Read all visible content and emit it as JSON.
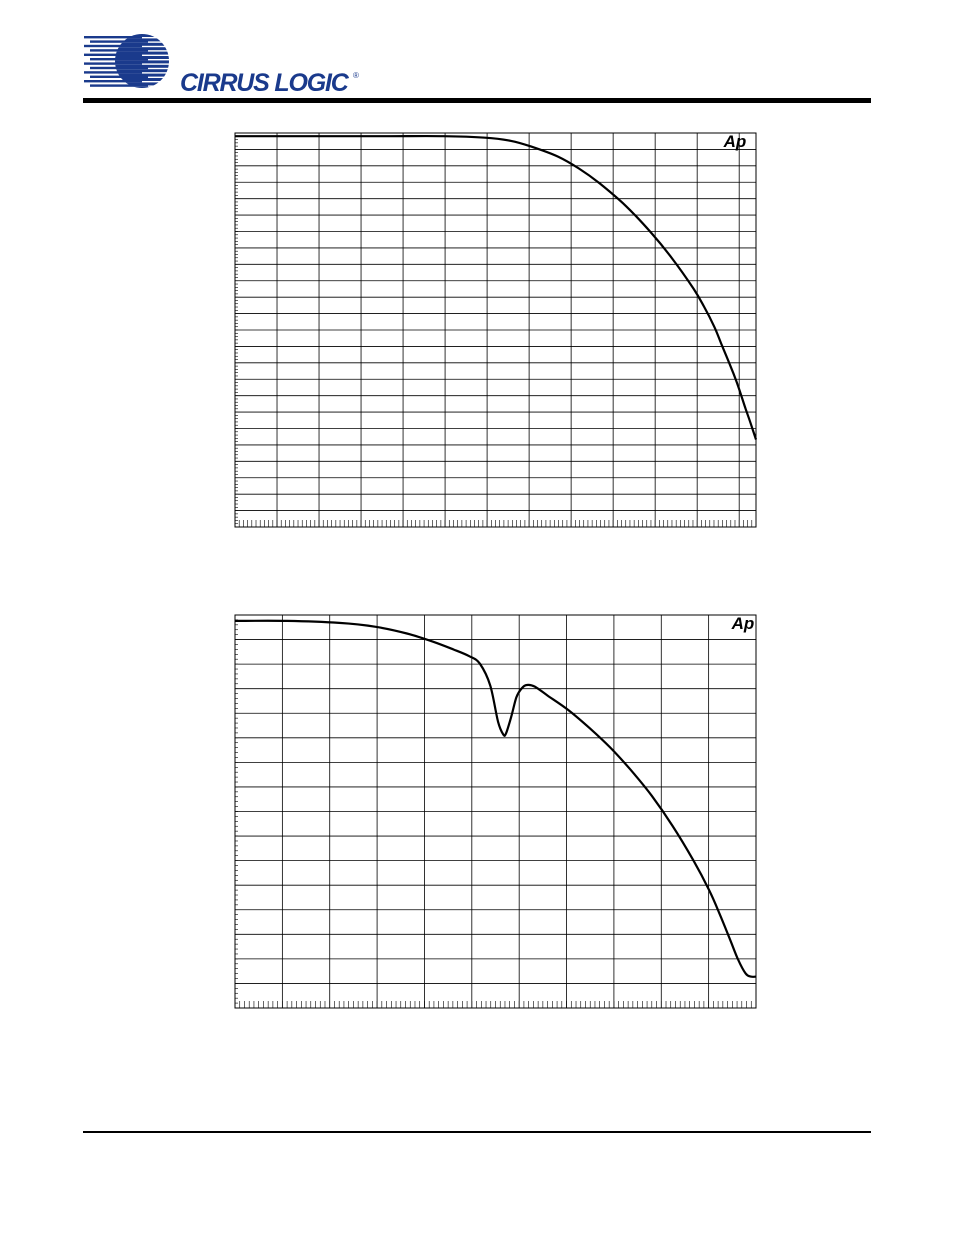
{
  "header": {
    "brand_name": "CIRRUS LOGIC",
    "brand_color": "#1a3a8c"
  },
  "chart_data": [
    {
      "type": "line",
      "title": "",
      "xlabel": "",
      "ylabel": "",
      "xlim": [
        0,
        1
      ],
      "ylim": [
        0,
        1
      ],
      "xscale": "linear, 12.4 major divisions with minor ticks",
      "grid": true,
      "legend": "none",
      "watermark": "Ap",
      "series": [
        {
          "color": "#000000",
          "x": [
            0,
            0.1,
            0.2,
            0.3,
            0.4,
            0.48,
            0.53,
            0.57,
            0.62,
            0.66,
            0.7,
            0.75,
            0.8,
            0.84,
            0.88,
            0.9,
            0.92,
            0.935,
            0.95,
            0.965,
            0.98,
            0.99,
            1.0
          ],
          "y": [
            0.992,
            0.992,
            0.992,
            0.992,
            0.992,
            0.988,
            0.98,
            0.965,
            0.94,
            0.91,
            0.872,
            0.815,
            0.745,
            0.68,
            0.605,
            0.56,
            0.508,
            0.46,
            0.412,
            0.36,
            0.3,
            0.262,
            0.222
          ]
        }
      ]
    },
    {
      "type": "line",
      "title": "",
      "xlabel": "",
      "ylabel": "",
      "xlim": [
        0,
        1
      ],
      "ylim": [
        0,
        1
      ],
      "xscale": "linear, 11 major divisions with minor ticks",
      "grid": true,
      "legend": "none",
      "watermark": "Ap",
      "series": [
        {
          "color": "#000000",
          "x": [
            0,
            0.1,
            0.2,
            0.27,
            0.33,
            0.38,
            0.42,
            0.45,
            0.47,
            0.49,
            0.505,
            0.515,
            0.52,
            0.53,
            0.54,
            0.55,
            0.56,
            0.575,
            0.6,
            0.64,
            0.68,
            0.72,
            0.76,
            0.8,
            0.84,
            0.88,
            0.91,
            0.93,
            0.95,
            0.965,
            0.98,
            0.99,
            1.0
          ],
          "y": [
            0.985,
            0.985,
            0.98,
            0.97,
            0.953,
            0.932,
            0.912,
            0.895,
            0.876,
            0.82,
            0.728,
            0.696,
            0.698,
            0.74,
            0.79,
            0.813,
            0.822,
            0.818,
            0.795,
            0.758,
            0.713,
            0.663,
            0.605,
            0.54,
            0.463,
            0.375,
            0.3,
            0.24,
            0.175,
            0.125,
            0.088,
            0.08,
            0.08
          ]
        }
      ]
    }
  ]
}
